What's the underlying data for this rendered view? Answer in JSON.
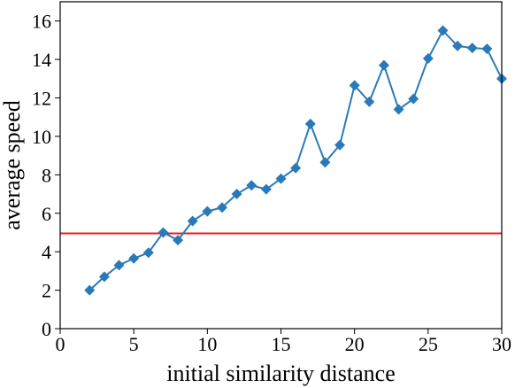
{
  "chart_data": {
    "type": "line",
    "title": "",
    "xlabel": "initial similarity distance",
    "ylabel": "average speed",
    "xlim": [
      0,
      30
    ],
    "ylim": [
      0,
      17
    ],
    "xticks": [
      0,
      5,
      10,
      15,
      20,
      25,
      30
    ],
    "yticks": [
      0,
      2,
      4,
      6,
      8,
      10,
      12,
      14,
      16
    ],
    "grid": false,
    "legend": "none",
    "series": [
      {
        "color": "#2a7ab9",
        "marker": "diamond",
        "x": [
          2,
          3,
          4,
          5,
          6,
          7,
          8,
          9,
          10,
          11,
          12,
          13,
          14,
          15,
          16,
          17,
          18,
          19,
          20,
          21,
          22,
          23,
          24,
          25,
          26,
          27,
          28,
          29,
          30
        ],
        "y": [
          2.0,
          2.7,
          3.3,
          3.65,
          3.95,
          5.0,
          4.6,
          5.6,
          6.1,
          6.3,
          7.0,
          7.45,
          7.25,
          7.8,
          8.35,
          10.65,
          8.65,
          9.55,
          12.65,
          11.8,
          13.7,
          11.4,
          11.95,
          14.05,
          15.5,
          14.7,
          14.6,
          14.55,
          13.0
        ]
      }
    ],
    "reference_line": {
      "orientation": "horizontal",
      "y": 4.95,
      "color": "#e32222"
    }
  }
}
